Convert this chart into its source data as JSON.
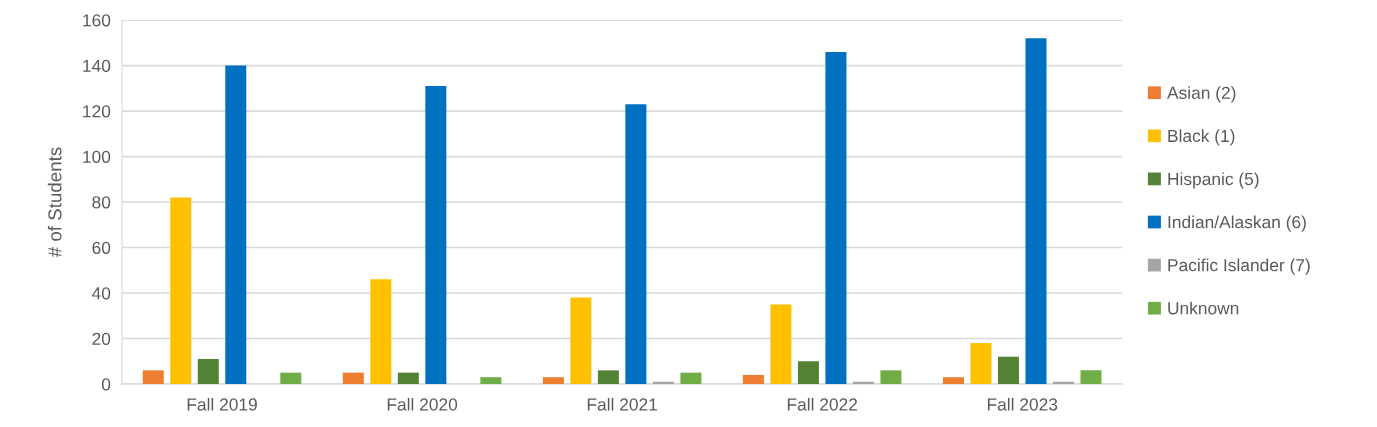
{
  "chart_data": {
    "type": "bar",
    "ylabel": "# of Students",
    "categories": [
      "Fall 2019",
      "Fall 2020",
      "Fall 2021",
      "Fall 2022",
      "Fall 2023"
    ],
    "series": [
      {
        "name": "Asian (2)",
        "color": "#ed7d31",
        "values": [
          6,
          5,
          3,
          4,
          3
        ]
      },
      {
        "name": "Black (1)",
        "color": "#ffc000",
        "values": [
          82,
          46,
          38,
          35,
          18
        ]
      },
      {
        "name": "Hispanic (5)",
        "color": "#548235",
        "values": [
          11,
          5,
          6,
          10,
          12
        ]
      },
      {
        "name": "Indian/Alaskan (6)",
        "color": "#0070c0",
        "values": [
          140,
          131,
          123,
          146,
          152
        ]
      },
      {
        "name": "Pacific Islander (7)",
        "color": "#a5a5a5",
        "values": [
          null,
          null,
          1,
          1,
          1
        ]
      },
      {
        "name": "Unknown",
        "color": "#70ad47",
        "values": [
          5,
          3,
          5,
          6,
          6
        ]
      }
    ],
    "ylim": [
      0,
      160
    ],
    "yticks": [
      0,
      20,
      40,
      60,
      80,
      100,
      120,
      140,
      160
    ],
    "grid": "y",
    "legend": "right"
  }
}
